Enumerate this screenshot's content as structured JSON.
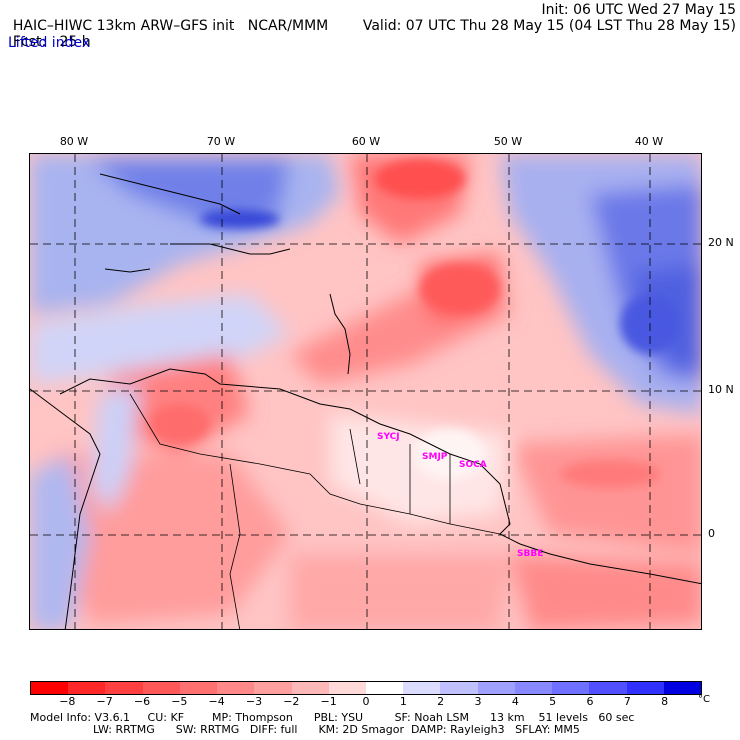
{
  "header": {
    "model": "HAIC–HIWC 13km ARW–GFS init",
    "org": "NCAR/MMM",
    "fcst_label": "Fcst:",
    "fcst_value": "25 h",
    "field": "Lifted index",
    "init": "Init: 06 UTC Wed 27 May 15",
    "valid": "Valid: 07 UTC Thu 28 May 15 (04 LST Thu 28 May 15)"
  },
  "map": {
    "lon_labels": [
      "80 W",
      "70 W",
      "60 W",
      "50 W",
      "40 W"
    ],
    "lat_labels": [
      "20 N",
      "10 N",
      "0"
    ],
    "stations": [
      "SYCJ",
      "SMJP",
      "SOCA",
      "SBBE"
    ],
    "grid_color": "#000000"
  },
  "colorbar": {
    "ticks": [
      "−8",
      "−7",
      "−6",
      "−5",
      "−4",
      "−3",
      "−2",
      "−1",
      "0",
      "1",
      "2",
      "3",
      "4",
      "5",
      "6",
      "7",
      "8"
    ],
    "unit": "°C",
    "colors": [
      "#ff0000",
      "#ff2828",
      "#ff4040",
      "#ff5858",
      "#ff7070",
      "#ff8888",
      "#ffa0a0",
      "#ffb8b8",
      "#ffd8d8",
      "#ffffff",
      "#dcdcff",
      "#c0c0ff",
      "#a0a0ff",
      "#8888ff",
      "#7070ff",
      "#5050ff",
      "#3030ff",
      "#0000e0"
    ]
  },
  "model_info": {
    "line1": "Model Info: V3.6.1     CU: KF        MP: Thompson      PBL: YSU         SF: Noah LSM      13 km    51 levels   60 sec",
    "line2": "                  LW: RRTMG      SW: RRTMG   DIFF: full      KM: 2D Smagor  DAMP: Rayleigh3   SFLAY: MM5"
  }
}
